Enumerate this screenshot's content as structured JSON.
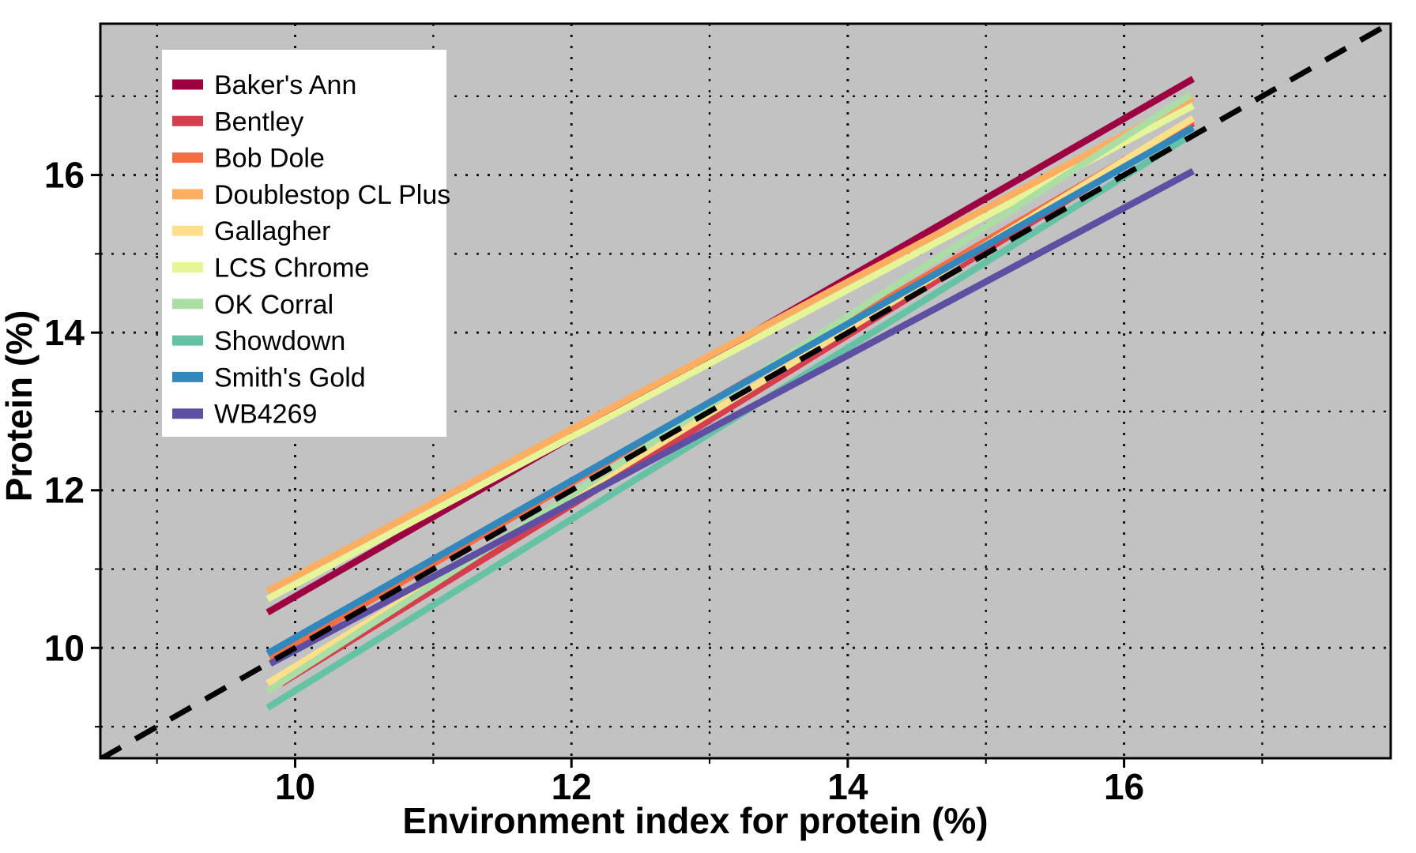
{
  "chart_data": {
    "type": "line",
    "title": "",
    "xlabel": "Environment index for protein (%)",
    "ylabel": "Protein (%)",
    "xlim": [
      8.59,
      17.93
    ],
    "ylim": [
      8.6,
      17.92
    ],
    "x_major_ticks": [
      10,
      12,
      14,
      16
    ],
    "x_minor_ticks": [
      9,
      11,
      13,
      15,
      17
    ],
    "y_major_ticks": [
      10,
      12,
      14,
      16
    ],
    "y_minor_ticks": [
      9,
      11,
      13,
      15,
      17
    ],
    "grid": "dotted black, major and minor, on gray panel",
    "panel_bg": "#c2c2c2",
    "border_color": "#000000",
    "legend_position": "top-left",
    "legend_bg": "#ffffff",
    "identity_line": {
      "name": "identity-1to1-line",
      "color": "#000000",
      "style": "dashed",
      "x": [
        8.59,
        17.93
      ],
      "y": [
        8.59,
        17.93
      ]
    },
    "series": [
      {
        "name": "Baker's Ann",
        "color": "#9e0142",
        "x": [
          9.8,
          16.5
        ],
        "y": [
          10.45,
          17.22
        ]
      },
      {
        "name": "Bentley",
        "color": "#d53e4f",
        "x": [
          9.9,
          16.5
        ],
        "y": [
          9.55,
          16.66
        ]
      },
      {
        "name": "Bob Dole",
        "color": "#f46d43",
        "x": [
          9.82,
          16.5
        ],
        "y": [
          9.86,
          16.7
        ]
      },
      {
        "name": "Doublestop CL Plus",
        "color": "#fdae61",
        "x": [
          9.8,
          16.5
        ],
        "y": [
          10.72,
          16.98
        ]
      },
      {
        "name": "Gallagher",
        "color": "#fee08b",
        "x": [
          9.8,
          16.5
        ],
        "y": [
          9.55,
          16.72
        ]
      },
      {
        "name": "LCS Chrome",
        "color": "#e6f598",
        "x": [
          9.8,
          16.5
        ],
        "y": [
          10.62,
          16.88
        ]
      },
      {
        "name": "OK Corral",
        "color": "#abdda4",
        "x": [
          9.8,
          16.48
        ],
        "y": [
          9.45,
          17.02
        ]
      },
      {
        "name": "Showdown",
        "color": "#66c2a5",
        "x": [
          9.8,
          16.45
        ],
        "y": [
          9.24,
          16.47
        ]
      },
      {
        "name": "Smith's Gold",
        "color": "#3288bd",
        "x": [
          9.8,
          16.5
        ],
        "y": [
          9.93,
          16.6
        ]
      },
      {
        "name": "WB4269",
        "color": "#5e4fa2",
        "x": [
          9.82,
          16.5
        ],
        "y": [
          9.8,
          16.05
        ]
      }
    ]
  }
}
